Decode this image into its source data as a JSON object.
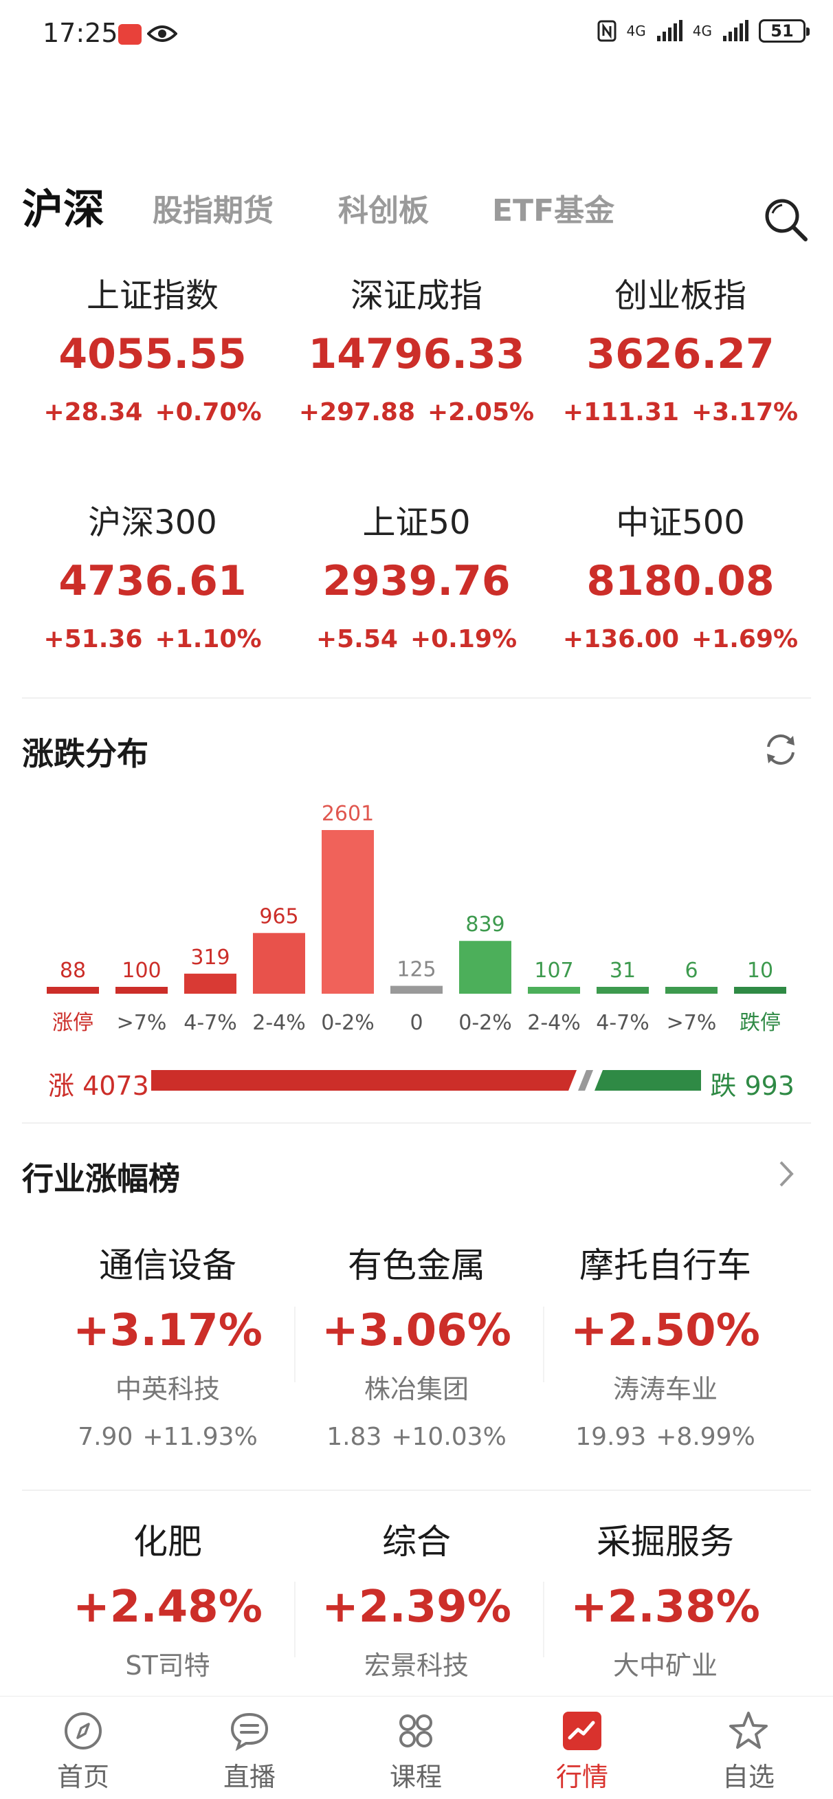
{
  "status_bar": {
    "time": "17:25",
    "network": "4G",
    "battery": "51"
  },
  "tabs": [
    {
      "label": "沪深",
      "active": true
    },
    {
      "label": "股指期货",
      "active": false
    },
    {
      "label": "科创板",
      "active": false
    },
    {
      "label": "ETF基金",
      "active": false
    }
  ],
  "indices": [
    {
      "name": "上证指数",
      "value": "4055.55",
      "change": "+28.34",
      "pct": "+0.70%"
    },
    {
      "name": "深证成指",
      "value": "14796.33",
      "change": "+297.88",
      "pct": "+2.05%"
    },
    {
      "name": "创业板指",
      "value": "3626.27",
      "change": "+111.31",
      "pct": "+3.17%"
    },
    {
      "name": "沪深300",
      "value": "4736.61",
      "change": "+51.36",
      "pct": "+1.10%"
    },
    {
      "name": "上证50",
      "value": "2939.76",
      "change": "+5.54",
      "pct": "+0.19%"
    },
    {
      "name": "中证500",
      "value": "8180.08",
      "change": "+136.00",
      "pct": "+1.69%"
    }
  ],
  "distribution": {
    "title": "涨跌分布",
    "chart_data": {
      "type": "bar",
      "categories": [
        "涨停",
        ">7%",
        "4-7%",
        "2-4%",
        "0-2%",
        "0",
        "0-2%",
        "2-4%",
        "4-7%",
        ">7%",
        "跌停"
      ],
      "values": [
        88,
        100,
        319,
        965,
        2601,
        125,
        839,
        107,
        31,
        6,
        10
      ],
      "colors": [
        "#cc2e29",
        "#cc2e29",
        "#d93a34",
        "#e8524b",
        "#f0625a",
        "#999999",
        "#4caf5a",
        "#4caf5a",
        "#3d9a4e",
        "#3d9a4e",
        "#2f8a45"
      ],
      "label_colors": [
        "#cc2e29",
        "#cc2e29",
        "#cc2e29",
        "#cc2e29",
        "#e0574f",
        "#888888",
        "#3d9a4e",
        "#3d9a4e",
        "#3d9a4e",
        "#3d9a4e",
        "#3d9a4e"
      ]
    }
  },
  "rise_fall": {
    "rise_label": "涨 4073",
    "fall_label": "跌 993",
    "rise": 4073,
    "fall": 993,
    "rise_color": "#cc2e29",
    "fall_color": "#2f8a45"
  },
  "industry": {
    "title": "行业涨幅榜",
    "items": [
      {
        "name": "通信设备",
        "pct": "+3.17%",
        "stock": "中英科技",
        "price": "7.90",
        "stock_pct": "+11.93%"
      },
      {
        "name": "有色金属",
        "pct": "+3.06%",
        "stock": "株冶集团",
        "price": "1.83",
        "stock_pct": "+10.03%"
      },
      {
        "name": "摩托自行车",
        "pct": "+2.50%",
        "stock": "涛涛车业",
        "price": "19.93",
        "stock_pct": "+8.99%"
      },
      {
        "name": "化肥",
        "pct": "+2.48%",
        "stock": "ST司特",
        "price": "",
        "stock_pct": ""
      },
      {
        "name": "综合",
        "pct": "+2.39%",
        "stock": "宏景科技",
        "price": "",
        "stock_pct": ""
      },
      {
        "name": "采掘服务",
        "pct": "+2.38%",
        "stock": "大中矿业",
        "price": "",
        "stock_pct": ""
      }
    ]
  },
  "bottom_nav": [
    {
      "label": "首页",
      "icon": "compass-icon",
      "active": false
    },
    {
      "label": "直播",
      "icon": "chat-bubble-icon",
      "active": false
    },
    {
      "label": "课程",
      "icon": "grid-icon",
      "active": false
    },
    {
      "label": "行情",
      "icon": "market-chart-icon",
      "active": true
    },
    {
      "label": "自选",
      "icon": "star-icon",
      "active": false
    }
  ],
  "colors": {
    "up": "#cc2e29",
    "down": "#2f8a45",
    "active_nav": "#d9322d"
  }
}
